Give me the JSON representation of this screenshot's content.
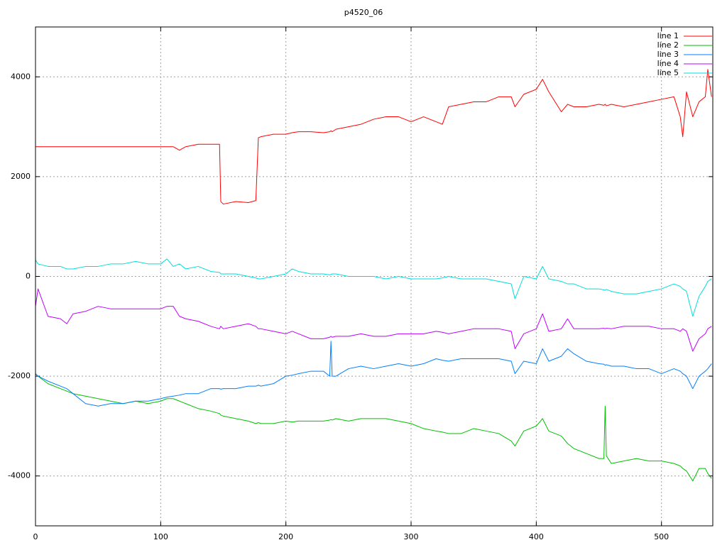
{
  "chart_data": {
    "type": "line",
    "title": "p4520_06",
    "x": [
      0,
      2,
      10,
      20,
      25,
      30,
      40,
      50,
      60,
      70,
      80,
      90,
      100,
      105,
      110,
      115,
      120,
      130,
      140,
      147,
      148,
      150,
      160,
      170,
      176,
      178,
      180,
      190,
      200,
      205,
      210,
      220,
      230,
      235,
      236,
      237,
      240,
      250,
      260,
      270,
      280,
      290,
      300,
      310,
      320,
      325,
      330,
      340,
      350,
      360,
      370,
      380,
      383,
      390,
      400,
      405,
      410,
      420,
      425,
      430,
      440,
      450,
      454,
      455,
      456,
      460,
      470,
      480,
      490,
      500,
      510,
      515,
      517,
      520,
      525,
      530,
      535,
      537,
      540
    ],
    "series": [
      {
        "name": "line 1",
        "color": "#ff0000",
        "values": [
          2600,
          2600,
          2600,
          2600,
          2600,
          2600,
          2600,
          2600,
          2600,
          2600,
          2600,
          2600,
          2600,
          2600,
          2600,
          2530,
          2600,
          2650,
          2650,
          2650,
          1500,
          1450,
          1500,
          1480,
          1520,
          2780,
          2800,
          2850,
          2850,
          2880,
          2900,
          2900,
          2880,
          2900,
          2920,
          2900,
          2950,
          3000,
          3050,
          3150,
          3200,
          3200,
          3100,
          3200,
          3100,
          3050,
          3400,
          3450,
          3500,
          3500,
          3600,
          3600,
          3400,
          3650,
          3750,
          3950,
          3700,
          3300,
          3450,
          3400,
          3400,
          3450,
          3430,
          3450,
          3420,
          3450,
          3400,
          3450,
          3500,
          3550,
          3600,
          3200,
          2800,
          3700,
          3200,
          3500,
          3600,
          4150,
          3600
        ]
      },
      {
        "name": "line 2",
        "color": "#00c000",
        "values": [
          -1950,
          -2000,
          -2150,
          -2250,
          -2300,
          -2350,
          -2400,
          -2450,
          -2500,
          -2550,
          -2500,
          -2550,
          -2500,
          -2450,
          -2450,
          -2500,
          -2550,
          -2650,
          -2700,
          -2750,
          -2780,
          -2800,
          -2850,
          -2900,
          -2950,
          -2930,
          -2950,
          -2950,
          -2900,
          -2920,
          -2900,
          -2900,
          -2900,
          -2880,
          -2870,
          -2880,
          -2850,
          -2900,
          -2850,
          -2850,
          -2850,
          -2900,
          -2950,
          -3050,
          -3100,
          -3120,
          -3150,
          -3150,
          -3050,
          -3100,
          -3150,
          -3300,
          -3400,
          -3100,
          -3000,
          -2850,
          -3100,
          -3200,
          -3350,
          -3450,
          -3550,
          -3650,
          -3650,
          -2600,
          -3600,
          -3750,
          -3700,
          -3650,
          -3700,
          -3700,
          -3750,
          -3800,
          -3850,
          -3900,
          -4100,
          -3850,
          -3850,
          -3950,
          -4050
        ]
      },
      {
        "name": "line 3",
        "color": "#0080ff",
        "values": [
          -1950,
          -2000,
          -2100,
          -2200,
          -2250,
          -2350,
          -2550,
          -2600,
          -2550,
          -2550,
          -2500,
          -2500,
          -2450,
          -2420,
          -2400,
          -2380,
          -2350,
          -2350,
          -2250,
          -2250,
          -2260,
          -2250,
          -2250,
          -2200,
          -2200,
          -2180,
          -2200,
          -2150,
          -2000,
          -1980,
          -1950,
          -1900,
          -1900,
          -2000,
          -1300,
          -2000,
          -2000,
          -1850,
          -1800,
          -1850,
          -1800,
          -1750,
          -1800,
          -1750,
          -1650,
          -1680,
          -1700,
          -1650,
          -1650,
          -1650,
          -1650,
          -1700,
          -1950,
          -1700,
          -1750,
          -1450,
          -1700,
          -1600,
          -1450,
          -1550,
          -1700,
          -1750,
          -1760,
          -1780,
          -1770,
          -1800,
          -1800,
          -1850,
          -1850,
          -1950,
          -1850,
          -1900,
          -1950,
          -2000,
          -2250,
          -2000,
          -1900,
          -1850,
          -1750
        ]
      },
      {
        "name": "line 4",
        "color": "#c000ff",
        "values": [
          -600,
          -250,
          -800,
          -850,
          -950,
          -750,
          -700,
          -600,
          -650,
          -650,
          -650,
          -650,
          -650,
          -600,
          -600,
          -800,
          -850,
          -900,
          -1000,
          -1050,
          -1000,
          -1050,
          -1000,
          -950,
          -1000,
          -1050,
          -1050,
          -1100,
          -1150,
          -1100,
          -1150,
          -1250,
          -1250,
          -1220,
          -1200,
          -1220,
          -1200,
          -1200,
          -1150,
          -1200,
          -1200,
          -1150,
          -1150,
          -1150,
          -1100,
          -1120,
          -1150,
          -1100,
          -1050,
          -1050,
          -1050,
          -1100,
          -1450,
          -1150,
          -1050,
          -750,
          -1100,
          -1050,
          -850,
          -1050,
          -1050,
          -1050,
          -1040,
          -1050,
          -1040,
          -1050,
          -1000,
          -1000,
          -1000,
          -1050,
          -1050,
          -1100,
          -1050,
          -1100,
          -1500,
          -1250,
          -1150,
          -1050,
          -1000
        ]
      },
      {
        "name": "line 5",
        "color": "#00dddd",
        "values": [
          330,
          250,
          200,
          200,
          150,
          150,
          200,
          200,
          250,
          250,
          300,
          250,
          250,
          350,
          200,
          250,
          150,
          200,
          100,
          80,
          50,
          50,
          50,
          0,
          -30,
          -50,
          -50,
          0,
          50,
          150,
          100,
          50,
          50,
          30,
          40,
          50,
          50,
          0,
          0,
          0,
          -50,
          0,
          -50,
          -50,
          -50,
          -30,
          0,
          -50,
          -50,
          -50,
          -100,
          -150,
          -450,
          0,
          -50,
          200,
          -50,
          -100,
          -150,
          -150,
          -250,
          -250,
          -270,
          -280,
          -260,
          -300,
          -350,
          -350,
          -300,
          -250,
          -150,
          -200,
          -250,
          -300,
          -800,
          -400,
          -200,
          -100,
          -50
        ]
      }
    ],
    "xlim": [
      0,
      541
    ],
    "ylim": [
      -5000,
      5000
    ],
    "xticks": [
      0,
      100,
      200,
      300,
      400,
      500
    ],
    "yticks": [
      -4000,
      -2000,
      0,
      2000,
      4000
    ],
    "grid": true,
    "legend": "top-right"
  }
}
